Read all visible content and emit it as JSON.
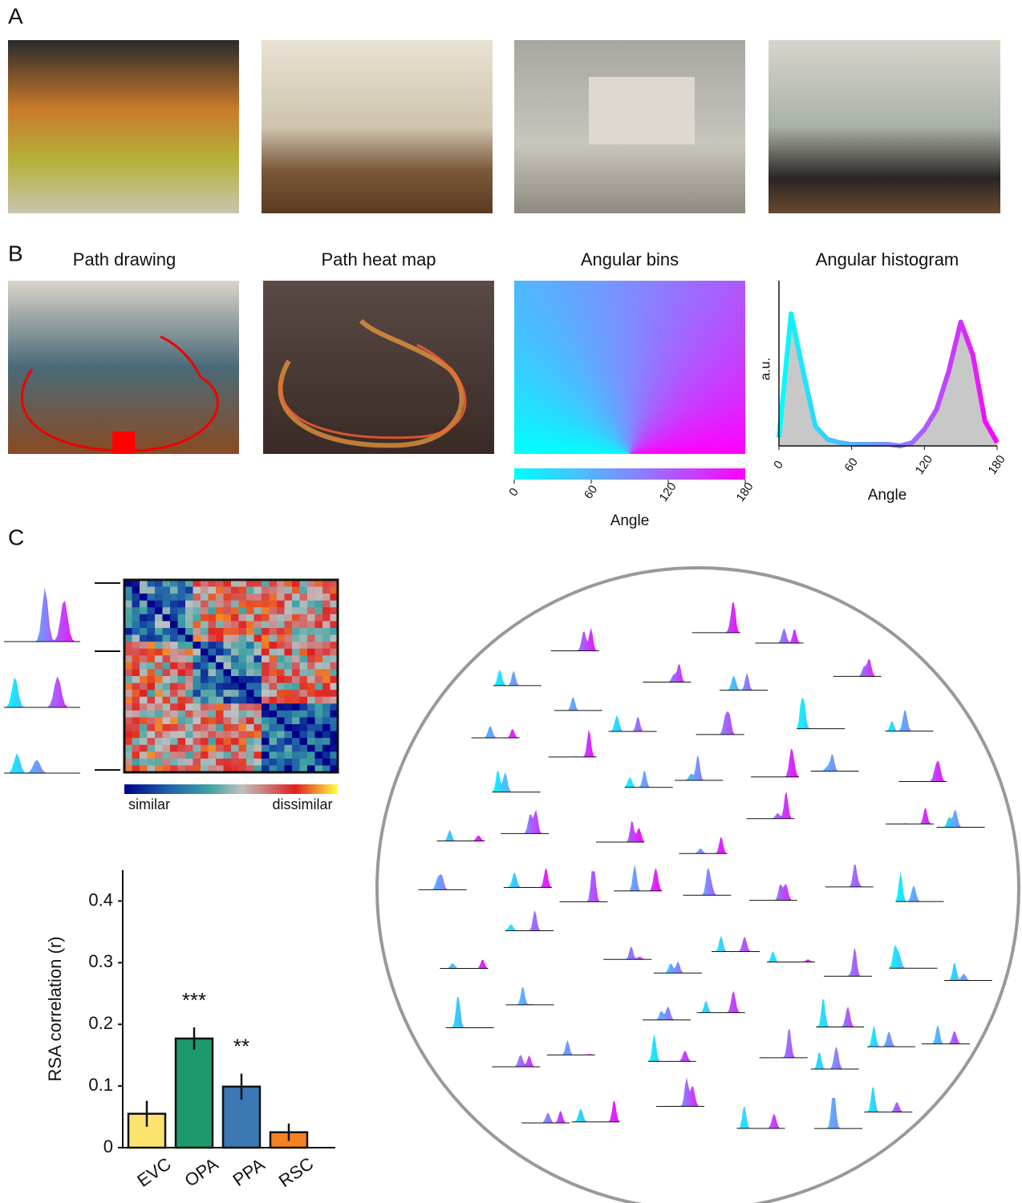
{
  "panels": {
    "a": {
      "label": "A"
    },
    "b": {
      "label": "B",
      "titles": [
        "Path drawing",
        "Path heat map",
        "Angular bins"
      ]
    },
    "c": {
      "label": "C"
    }
  },
  "angular_colorbar": {
    "xlim": [
      0,
      180
    ],
    "xticks": [
      0,
      60,
      120,
      180
    ],
    "xlabel": "Angle"
  },
  "rdm_legend": {
    "low": "similar",
    "high": "dissimilar"
  },
  "chart_data": [
    {
      "type": "line",
      "title": "Angular histogram",
      "x": [
        0,
        10,
        20,
        30,
        40,
        50,
        60,
        70,
        80,
        90,
        100,
        110,
        120,
        130,
        140,
        150,
        160,
        170,
        180
      ],
      "values": [
        0.05,
        0.8,
        0.45,
        0.12,
        0.04,
        0.02,
        0.01,
        0.01,
        0.01,
        0.01,
        0.0,
        0.02,
        0.1,
        0.22,
        0.45,
        0.75,
        0.55,
        0.15,
        0.02
      ],
      "xlim": [
        0,
        180
      ],
      "xticks": [
        0,
        60,
        120,
        180
      ],
      "ylim": [
        0,
        1
      ],
      "xlabel": "Angle",
      "ylabel": "a.u."
    },
    {
      "type": "bar",
      "categories": [
        "EVC",
        "OPA",
        "PPA",
        "RSC"
      ],
      "values": [
        0.055,
        0.177,
        0.099,
        0.025
      ],
      "errors": [
        0.021,
        0.018,
        0.021,
        0.014
      ],
      "colors": [
        "#fbe36e",
        "#1c9a6c",
        "#3b78b4",
        "#f5821f"
      ],
      "significance": [
        null,
        "***",
        "**",
        null
      ],
      "ylabel": "RSA correlation (r)",
      "ylim": [
        0,
        0.45
      ],
      "yticks": [
        0,
        0.1,
        0.2,
        0.3,
        0.4
      ]
    }
  ]
}
